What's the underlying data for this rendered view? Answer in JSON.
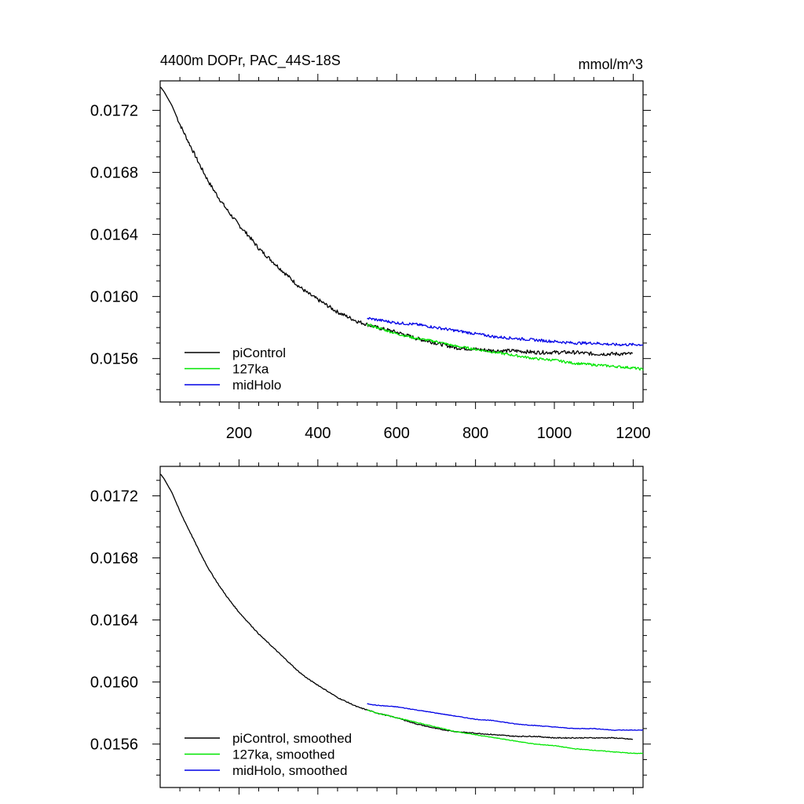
{
  "chart_data": [
    {
      "type": "line",
      "title": "4400m DOPr, PAC_44S-18S",
      "units": "mmol/m^3",
      "xlim": [
        0,
        1225
      ],
      "ylim": [
        0.01532,
        0.01739
      ],
      "xticks": [
        200,
        400,
        600,
        800,
        1000,
        1200
      ],
      "xtick_labels": [
        "200",
        "400",
        "600",
        "800",
        "1000",
        "1200"
      ],
      "yticks": [
        0.0156,
        0.016,
        0.0164,
        0.0168,
        0.0172
      ],
      "ytick_labels": [
        "0.0156",
        "0.0160",
        "0.0164",
        "0.0168",
        "0.0172"
      ],
      "legend_position": "bottom-left",
      "series": [
        {
          "name": "piControl",
          "color": "#000000",
          "noise": 1.2e-05,
          "x": [
            1,
            10,
            30,
            50,
            75,
            100,
            125,
            150,
            175,
            200,
            225,
            250,
            275,
            300,
            325,
            350,
            375,
            400,
            450,
            500,
            550,
            600,
            650,
            700,
            750,
            800,
            850,
            900,
            950,
            1000,
            1050,
            1100,
            1150,
            1200
          ],
          "y": [
            0.01735,
            0.01732,
            0.01723,
            0.01711,
            0.01698,
            0.01685,
            0.01673,
            0.01663,
            0.01654,
            0.01646,
            0.01639,
            0.01631,
            0.01625,
            0.01619,
            0.01613,
            0.01607,
            0.01602,
            0.01598,
            0.0159,
            0.01584,
            0.0158,
            0.01577,
            0.01573,
            0.0157,
            0.01567,
            0.01566,
            0.01565,
            0.01565,
            0.01564,
            0.01564,
            0.01564,
            0.01563,
            0.01563,
            0.01563
          ]
        },
        {
          "name": "127ka",
          "color": "#00e600",
          "noise": 8e-06,
          "x": [
            525,
            550,
            600,
            650,
            700,
            750,
            800,
            850,
            900,
            950,
            1000,
            1050,
            1100,
            1150,
            1200,
            1225
          ],
          "y": [
            0.01582,
            0.0158,
            0.01576,
            0.01573,
            0.01571,
            0.01568,
            0.01566,
            0.01564,
            0.01562,
            0.0156,
            0.01559,
            0.01557,
            0.01556,
            0.01555,
            0.01554,
            0.01553
          ]
        },
        {
          "name": "midHolo",
          "color": "#0000e6",
          "noise": 9e-06,
          "x": [
            525,
            550,
            600,
            650,
            700,
            750,
            800,
            850,
            900,
            950,
            1000,
            1050,
            1100,
            1150,
            1200,
            1225
          ],
          "y": [
            0.01586,
            0.01585,
            0.01583,
            0.01582,
            0.0158,
            0.01578,
            0.01576,
            0.01574,
            0.01573,
            0.01572,
            0.01571,
            0.0157,
            0.0157,
            0.01569,
            0.01569,
            0.01569
          ]
        }
      ]
    },
    {
      "type": "line",
      "title": "",
      "units": "",
      "xlim": [
        0,
        1225
      ],
      "ylim": [
        0.01532,
        0.01739
      ],
      "xticks": [
        200,
        400,
        600,
        800,
        1000,
        1200
      ],
      "xtick_labels": [],
      "yticks": [
        0.0156,
        0.016,
        0.0164,
        0.0168,
        0.0172
      ],
      "ytick_labels": [
        "0.0156",
        "0.0160",
        "0.0164",
        "0.0168",
        "0.0172"
      ],
      "legend_position": "bottom-left",
      "series": [
        {
          "name": "piControl, smoothed",
          "color": "#000000",
          "noise": 3e-06,
          "x": [
            1,
            10,
            30,
            50,
            75,
            100,
            125,
            150,
            175,
            200,
            225,
            250,
            275,
            300,
            325,
            350,
            375,
            400,
            450,
            500,
            550,
            600,
            650,
            700,
            750,
            800,
            850,
            900,
            950,
            1000,
            1050,
            1100,
            1150,
            1200
          ],
          "y": [
            0.01734,
            0.01731,
            0.01722,
            0.0171,
            0.01697,
            0.01684,
            0.01672,
            0.01662,
            0.01653,
            0.01645,
            0.01638,
            0.01631,
            0.01625,
            0.01619,
            0.01613,
            0.01607,
            0.01602,
            0.01598,
            0.0159,
            0.01584,
            0.0158,
            0.01577,
            0.01573,
            0.0157,
            0.01568,
            0.01567,
            0.01566,
            0.01565,
            0.01565,
            0.01564,
            0.01564,
            0.01564,
            0.01564,
            0.01563
          ]
        },
        {
          "name": "127ka, smoothed",
          "color": "#00e600",
          "noise": 2e-06,
          "x": [
            525,
            550,
            600,
            650,
            700,
            750,
            800,
            850,
            900,
            950,
            1000,
            1050,
            1100,
            1150,
            1200,
            1225
          ],
          "y": [
            0.01582,
            0.0158,
            0.01577,
            0.01574,
            0.01571,
            0.01568,
            0.01566,
            0.01564,
            0.01562,
            0.0156,
            0.01559,
            0.01557,
            0.01556,
            0.01555,
            0.01554,
            0.01554
          ]
        },
        {
          "name": "midHolo, smoothed",
          "color": "#0000e6",
          "noise": 2e-06,
          "x": [
            525,
            550,
            600,
            650,
            700,
            750,
            800,
            850,
            900,
            950,
            1000,
            1050,
            1100,
            1150,
            1200,
            1225
          ],
          "y": [
            0.01586,
            0.01585,
            0.01584,
            0.01582,
            0.0158,
            0.01578,
            0.01576,
            0.01575,
            0.01573,
            0.01572,
            0.01571,
            0.0157,
            0.0157,
            0.01569,
            0.01569,
            0.01569
          ]
        }
      ]
    }
  ]
}
